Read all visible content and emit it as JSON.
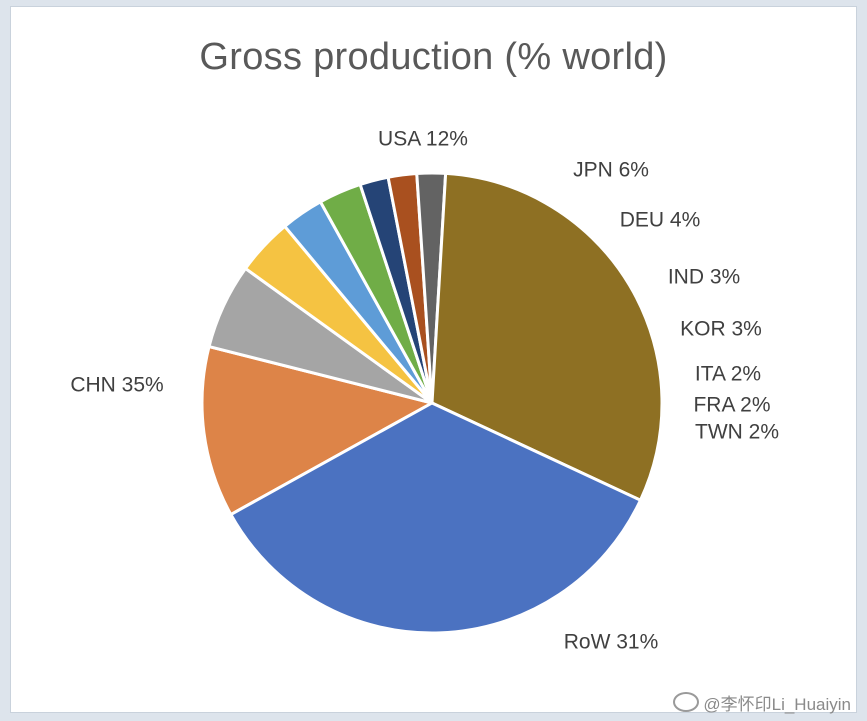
{
  "chart_data": {
    "type": "pie",
    "title": "Gross production  (% world)",
    "slices": [
      {
        "label": "USA",
        "value": 12,
        "text": "USA 12%",
        "color": "#dd8448"
      },
      {
        "label": "JPN",
        "value": 6,
        "text": "JPN 6%",
        "color": "#a5a5a5"
      },
      {
        "label": "DEU",
        "value": 4,
        "text": "DEU 4%",
        "color": "#f5c342"
      },
      {
        "label": "IND",
        "value": 3,
        "text": "IND 3%",
        "color": "#5e9cd7"
      },
      {
        "label": "KOR",
        "value": 3,
        "text": "KOR 3%",
        "color": "#70ad47"
      },
      {
        "label": "ITA",
        "value": 2,
        "text": "ITA 2%",
        "color": "#254476"
      },
      {
        "label": "FRA",
        "value": 2,
        "text": "FRA 2%",
        "color": "#a9501f"
      },
      {
        "label": "TWN",
        "value": 2,
        "text": "TWN 2%",
        "color": "#636363"
      },
      {
        "label": "RoW",
        "value": 31,
        "text": "RoW 31%",
        "color": "#8e7023"
      },
      {
        "label": "CHN",
        "value": 35,
        "text": "CHN 35%",
        "color": "#4b72c1"
      }
    ]
  },
  "watermark": "@李怀印Li_Huaiyin"
}
